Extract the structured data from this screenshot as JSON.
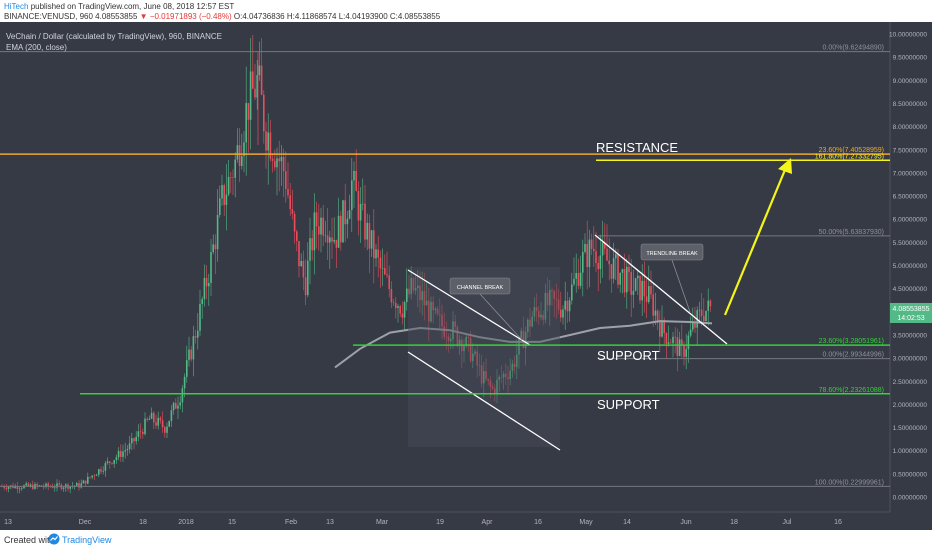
{
  "header": {
    "author": "HiTech",
    "published_text": "published on TradingView.com, June 08, 2018 12:57 EST",
    "symbol_line_prefix": "BINANCE:VENUSD, 960",
    "last_price": "4.08553855",
    "down_arrow": "▼",
    "change": "−0.01971893 (−0.48%)",
    "ohlc": "O:4.04736836 H:4.11868574 L:4.04193900 C:4.08553855"
  },
  "legend": {
    "title": "VeChain / Dollar (calculated by TradingView), 960, BINANCE",
    "indicator": "EMA (200, close)"
  },
  "annotations": {
    "resistance": "RESISTANCE",
    "support_upper": "SUPPORT",
    "support_lower": "SUPPORT",
    "channel_break": "CHANNEL BREAK",
    "trendline_break": "TRENDLINE BREAK"
  },
  "fib_labels": {
    "f0_top": "0.00%(9.62494890)",
    "f236_res": "23.60%(7.40528959)",
    "f1618": "161.80%(7.27332795)",
    "f500": "50.00%(5.63837930)",
    "f236_sup": "23.60%(3.28051961)",
    "f0_mid": "0.00%(2.99344996)",
    "f786": "78.60%(2.23261088)",
    "f100": "100.00%(0.22999961)"
  },
  "price_tag": {
    "value": "4.08553855",
    "time": "14:02:53"
  },
  "footer": {
    "created_with": "Created with",
    "brand": "TradingView"
  },
  "colors": {
    "chart_bg": "#363a45",
    "up": "#53b987",
    "down": "#eb4d5c",
    "resistance": "#f0a92b",
    "target": "#f5f519",
    "support": "#34d23a",
    "ema": "#9ea2a8",
    "channel_lines": "#ffffff",
    "fib_line": "#77797f"
  },
  "chart_data": {
    "type": "candlestick",
    "y_axis": {
      "ticks": [
        "10.00000000",
        "9.50000000",
        "9.00000000",
        "8.50000000",
        "8.00000000",
        "7.50000000",
        "7.00000000",
        "6.50000000",
        "6.00000000",
        "5.50000000",
        "5.00000000",
        "4.50000000",
        "4.00000000",
        "3.50000000",
        "3.00000000",
        "2.50000000",
        "2.00000000",
        "1.50000000",
        "1.00000000",
        "0.50000000",
        "0.00000000"
      ],
      "ylim": [
        0,
        10
      ]
    },
    "x_axis": {
      "ticks": [
        "13",
        "Dec",
        "18",
        "2018",
        "15",
        "Feb",
        "13",
        "Mar",
        "19",
        "Apr",
        "16",
        "May",
        "14",
        "Jun",
        "18",
        "Jul",
        "16"
      ]
    },
    "horizontal_lines": [
      {
        "name": "resistance",
        "value": 7.405
      },
      {
        "name": "target",
        "value": 7.273
      },
      {
        "name": "support_upper",
        "value": 3.28
      },
      {
        "name": "support_lower",
        "value": 2.23
      },
      {
        "name": "fib_0_top",
        "value": 9.62
      },
      {
        "name": "fib_50",
        "value": 5.64
      },
      {
        "name": "fib_0_mid",
        "value": 2.99
      },
      {
        "name": "fib_100",
        "value": 0.23
      }
    ],
    "price_path": [
      [
        0,
        0.23
      ],
      [
        50,
        0.23
      ],
      [
        80,
        0.25
      ],
      [
        100,
        0.6
      ],
      [
        130,
        1.1
      ],
      [
        150,
        1.7
      ],
      [
        165,
        1.5
      ],
      [
        180,
        2.2
      ],
      [
        195,
        3.5
      ],
      [
        210,
        5.0
      ],
      [
        222,
        6.4
      ],
      [
        235,
        7.2
      ],
      [
        248,
        8.5
      ],
      [
        258,
        9.0
      ],
      [
        265,
        8.0
      ],
      [
        275,
        7.5
      ],
      [
        285,
        7.0
      ],
      [
        295,
        5.5
      ],
      [
        305,
        4.6
      ],
      [
        315,
        5.9
      ],
      [
        325,
        6.0
      ],
      [
        335,
        5.6
      ],
      [
        345,
        6.1
      ],
      [
        352,
        6.8
      ],
      [
        362,
        6.0
      ],
      [
        372,
        5.4
      ],
      [
        382,
        4.8
      ],
      [
        392,
        4.4
      ],
      [
        402,
        4.1
      ],
      [
        412,
        4.5
      ],
      [
        422,
        4.3
      ],
      [
        432,
        3.9
      ],
      [
        442,
        3.7
      ],
      [
        452,
        3.6
      ],
      [
        462,
        3.4
      ],
      [
        472,
        3.1
      ],
      [
        482,
        2.6
      ],
      [
        492,
        2.3
      ],
      [
        502,
        2.6
      ],
      [
        512,
        2.8
      ],
      [
        522,
        3.4
      ],
      [
        532,
        3.9
      ],
      [
        542,
        4.1
      ],
      [
        552,
        4.2
      ],
      [
        562,
        4.1
      ],
      [
        572,
        4.5
      ],
      [
        582,
        5.1
      ],
      [
        592,
        5.4
      ],
      [
        602,
        5.2
      ],
      [
        612,
        5.0
      ],
      [
        622,
        4.8
      ],
      [
        632,
        4.5
      ],
      [
        642,
        4.5
      ],
      [
        652,
        4.2
      ],
      [
        662,
        3.6
      ],
      [
        672,
        3.4
      ],
      [
        682,
        3.1
      ],
      [
        692,
        3.6
      ],
      [
        702,
        4.0
      ],
      [
        712,
        4.08
      ]
    ],
    "ema_path": [
      [
        335,
        2.8
      ],
      [
        360,
        3.2
      ],
      [
        390,
        3.55
      ],
      [
        420,
        3.65
      ],
      [
        450,
        3.6
      ],
      [
        480,
        3.45
      ],
      [
        510,
        3.35
      ],
      [
        540,
        3.35
      ],
      [
        570,
        3.5
      ],
      [
        600,
        3.65
      ],
      [
        630,
        3.7
      ],
      [
        660,
        3.8
      ],
      [
        690,
        3.78
      ],
      [
        712,
        3.75
      ]
    ]
  }
}
